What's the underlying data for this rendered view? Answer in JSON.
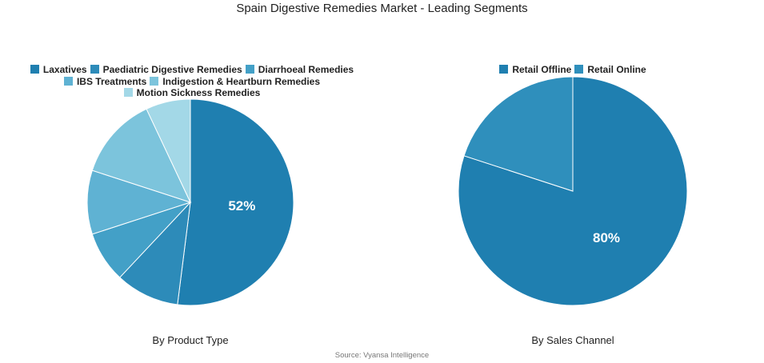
{
  "title": "Spain Digestive Remedies Market - Leading Segments",
  "source": "Source: Vyansa Intelligence",
  "chart_data": [
    {
      "type": "pie",
      "subtitle": "By Product Type",
      "categories": [
        "Laxatives",
        "Paediatric Digestive Remedies",
        "Diarrhoeal Remedies",
        "IBS Treatments",
        "Indigestion & Heartburn Remedies",
        "Motion Sickness Remedies"
      ],
      "values": [
        52,
        10,
        8,
        10,
        13,
        7
      ],
      "colors": [
        "#1f7fb0",
        "#2d8bb9",
        "#43a0c7",
        "#5fb2d3",
        "#7cc4dc",
        "#a3d8e7"
      ],
      "labels": [
        "52%",
        "",
        "",
        "",
        "",
        ""
      ],
      "legend_position": "top"
    },
    {
      "type": "pie",
      "subtitle": "By Sales Channel",
      "categories": [
        "Retail Offline",
        "Retail Online"
      ],
      "values": [
        80,
        20
      ],
      "colors": [
        "#1f7fb0",
        "#2f8fbc"
      ],
      "labels": [
        "80%",
        ""
      ],
      "legend_position": "top"
    }
  ]
}
